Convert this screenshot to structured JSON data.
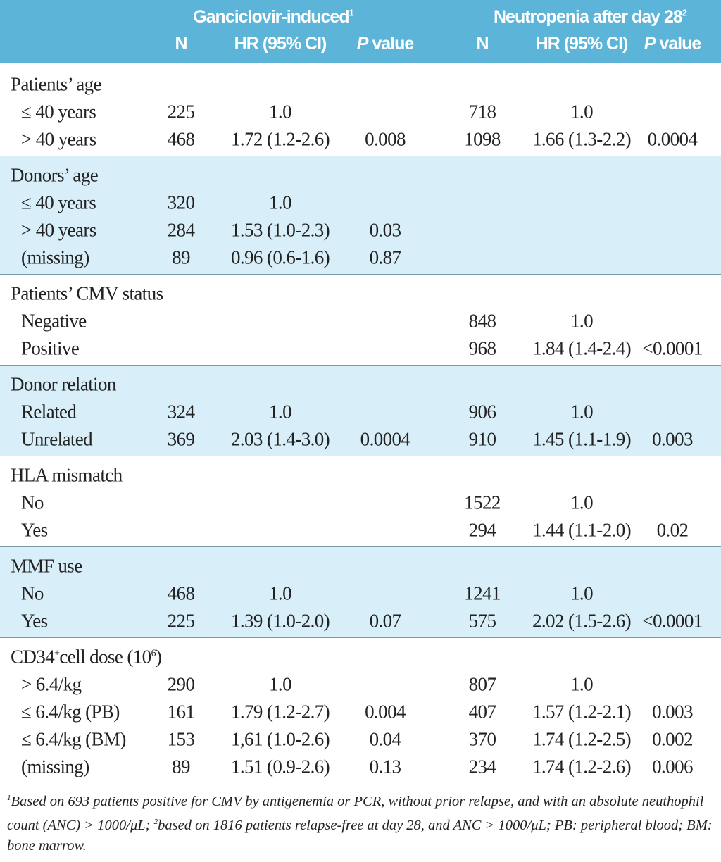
{
  "header": {
    "group1": "Ganciclovir-induced",
    "group1_sup": "1",
    "group2": "Neutropenia after day 28",
    "group2_sup": "2",
    "p_italic": "P",
    "columns": [
      "N",
      "HR (95% CI)",
      "value",
      "N",
      "HR (95% CI)",
      "value"
    ]
  },
  "groups": [
    {
      "title": "Patients’ age",
      "rows": [
        [
          "≤ 40 years",
          "225",
          "1.0",
          null,
          "718",
          "1.0",
          null
        ],
        [
          "> 40 years",
          "468",
          "1.72 (1.2-2.6)",
          "0.008",
          "1098",
          "1.66 (1.3-2.2)",
          "0.0004"
        ]
      ]
    },
    {
      "title": "Donors’ age",
      "rows": [
        [
          "≤ 40 years",
          "320",
          "1.0",
          null,
          null,
          null,
          null
        ],
        [
          "> 40 years",
          "284",
          "1.53 (1.0-2.3)",
          "0.03",
          null,
          null,
          null
        ],
        [
          "(missing)",
          "89",
          "0.96 (0.6-1.6)",
          "0.87",
          null,
          null,
          null
        ]
      ]
    },
    {
      "title": "Patients’ CMV status",
      "rows": [
        [
          "Negative",
          null,
          null,
          null,
          "848",
          "1.0",
          null
        ],
        [
          "Positive",
          null,
          null,
          null,
          "968",
          "1.84 (1.4-2.4)",
          "<0.0001"
        ]
      ]
    },
    {
      "title": "Donor relation",
      "rows": [
        [
          "Related",
          "324",
          "1.0",
          null,
          "906",
          "1.0",
          null
        ],
        [
          "Unrelated",
          "369",
          "2.03 (1.4-3.0)",
          "0.0004",
          "910",
          "1.45 (1.1-1.9)",
          "0.003"
        ]
      ]
    },
    {
      "title": "HLA mismatch",
      "rows": [
        [
          "No",
          null,
          null,
          null,
          "1522",
          "1.0",
          null
        ],
        [
          "Yes",
          null,
          null,
          null,
          "294",
          "1.44 (1.1-2.0)",
          "0.02"
        ]
      ]
    },
    {
      "title": "MMF use",
      "rows": [
        [
          "No",
          "468",
          "1.0",
          null,
          "1241",
          "1.0",
          null
        ],
        [
          "Yes",
          "225",
          "1.39 (1.0-2.0)",
          "0.07",
          "575",
          "2.02 (1.5-2.6)",
          "<0.0001"
        ]
      ]
    },
    {
      "title": [
        {
          "t": "CD34"
        },
        {
          "sup": "+"
        },
        {
          "t": "cell dose (10"
        },
        {
          "sup": "6"
        },
        {
          "t": ")"
        }
      ],
      "rows": [
        [
          "> 6.4/kg",
          "290",
          "1.0",
          null,
          "807",
          "1.0",
          null
        ],
        [
          "≤ 6.4/kg (PB)",
          "161",
          "1.79 (1.2-2.7)",
          "0.004",
          "407",
          "1.57 (1.2-2.1)",
          "0.003"
        ],
        [
          "≤ 6.4/kg (BM)",
          "153",
          "1,61 (1.0-2.6)",
          "0.04",
          "370",
          "1.74 (1.2-2.5)",
          "0.002"
        ],
        [
          "(missing)",
          "89",
          "1.51 (0.9-2.6)",
          "0.13",
          "234",
          "1.74 (1.2-2.6)",
          "0.006"
        ]
      ]
    }
  ],
  "footnote": [
    {
      "sup": "1"
    },
    {
      "t": "Based on 693 patients positive for CMV by antigenemia or PCR, without prior relapse, and with an absolute neuthophil count (ANC) > 1000/μL; "
    },
    {
      "sup": "2"
    },
    {
      "t": "based on 1816 patients relapse-free at day 28, and ANC > 1000/μL; PB: peripheral blood; BM: bone marrow."
    }
  ]
}
